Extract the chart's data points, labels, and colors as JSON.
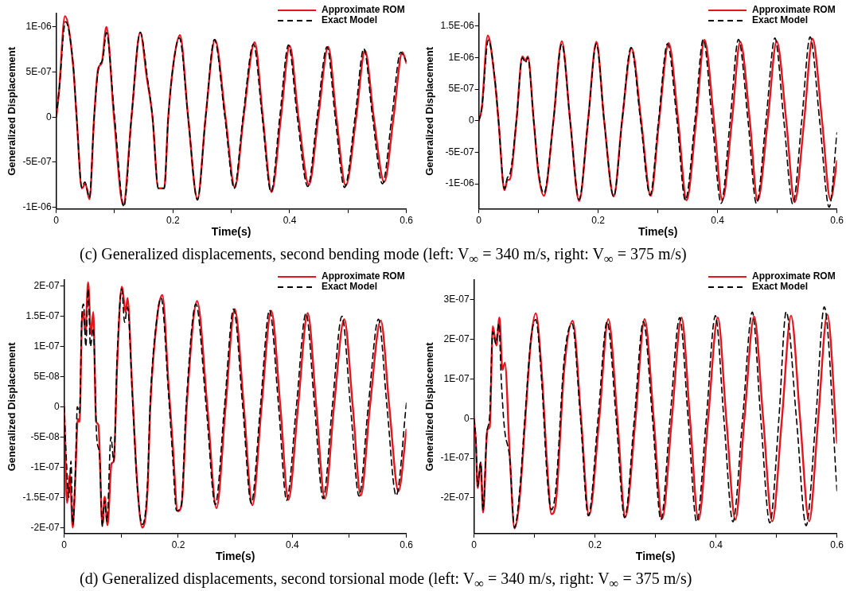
{
  "chart_data": [
    {
      "type": "line",
      "xlabel": "Time(s)",
      "ylabel": "Generalized Displacement",
      "legend": "top right",
      "grid": false,
      "marker": "none",
      "annotations": [
        "(c) Generalized displacements, second bending mode (left:  V$_{∞}$ = 340 m/s, right:  V$_{∞}$ = 375 m/s)"
      ],
      "xlim": [
        0,
        0.6
      ],
      "xticks": [
        0,
        {
          "value": 0.1,
          "label": null
        },
        0.2,
        {
          "value": 0.3,
          "label": null
        },
        0.4,
        {
          "value": 0.5,
          "label": null
        },
        0.6
      ],
      "ylim": [
        -1.02e-06,
        1.15e-06
      ],
      "yticks": [
        {
          "value": -1e-06,
          "label": "-1E-06"
        },
        {
          "value": -5e-07,
          "label": "-5E-07"
        },
        {
          "value": 0,
          "label": "0"
        },
        {
          "value": 5e-07,
          "label": "5E-07"
        },
        {
          "value": 1e-06,
          "label": "1E-06"
        }
      ],
      "series": [
        {
          "name": "Approximate ROM",
          "color": "#e8141c",
          "line_style": "solid",
          "x": [
            0,
            0.005,
            0.015,
            0.029,
            0.035,
            0.044,
            0.05,
            0.057,
            0.065,
            0.072,
            0.078,
            0.086,
            0.099,
            0.115,
            0.129,
            0.144,
            0.155,
            0.165,
            0.175,
            0.185,
            0.192,
            0.201,
            0.212,
            0.226,
            0.242,
            0.256,
            0.272,
            0.29,
            0.306,
            0.321,
            0.34,
            0.354,
            0.369,
            0.385,
            0.4,
            0.415,
            0.433,
            0.449,
            0.466,
            0.48,
            0.496,
            0.514,
            0.529,
            0.544,
            0.562,
            0.578,
            0.593,
            0.6
          ],
          "values": [
            0,
            3e-07,
            1.12e-06,
            5.7e-07,
            0,
            -7.9e-07,
            -7.4e-07,
            -9.1e-07,
            0,
            5.4e-07,
            6e-07,
            1e-06,
            0,
            -9.8e-07,
            0,
            9.4e-07,
            4.5e-07,
            0,
            -7.9e-07,
            -7.9e-07,
            0,
            6e-07,
            9.1e-07,
            0,
            -9.1e-07,
            0,
            8.6e-07,
            0,
            -7.8e-07,
            0,
            8.3e-07,
            0,
            -8.3e-07,
            0,
            7.9e-07,
            0,
            -7.5e-07,
            0,
            7.8e-07,
            0,
            -7.6e-07,
            0,
            7.4e-07,
            0,
            -7.2e-07,
            0,
            7.2e-07,
            6e-07
          ]
        },
        {
          "name": "Exact Model",
          "color": "#000000",
          "line_style": "dashed",
          "x": [
            0,
            0.005,
            0.016,
            0.029,
            0.035,
            0.044,
            0.049,
            0.057,
            0.065,
            0.072,
            0.08,
            0.086,
            0.1,
            0.116,
            0.129,
            0.144,
            0.157,
            0.165,
            0.175,
            0.185,
            0.192,
            0.201,
            0.211,
            0.226,
            0.242,
            0.256,
            0.271,
            0.289,
            0.305,
            0.32,
            0.338,
            0.353,
            0.368,
            0.383,
            0.398,
            0.413,
            0.431,
            0.447,
            0.464,
            0.478,
            0.494,
            0.512,
            0.527,
            0.542,
            0.559,
            0.575,
            0.59,
            0.6
          ],
          "values": [
            0,
            3e-07,
            1.06e-06,
            5.9e-07,
            0,
            -7.8e-07,
            -7.2e-07,
            -8.9e-07,
            0,
            5.2e-07,
            6.5e-07,
            9.4e-07,
            0,
            -9.9e-07,
            0,
            9.4e-07,
            4e-07,
            0,
            -7.9e-07,
            -7.9e-07,
            0,
            6e-07,
            8.8e-07,
            0,
            -9.2e-07,
            0,
            8.6e-07,
            0,
            -7.9e-07,
            0,
            8.1e-07,
            0,
            -8.3e-07,
            0,
            8e-07,
            0,
            -7.7e-07,
            0,
            7.8e-07,
            0,
            -7.8e-07,
            0,
            7.6e-07,
            0,
            -7.4e-07,
            0,
            7.2e-07,
            6.2e-07
          ]
        }
      ]
    },
    {
      "type": "line",
      "xlabel": "Time(s)",
      "ylabel": "Generalized Displacement",
      "legend": "top right",
      "grid": false,
      "marker": "none",
      "xlim": [
        0,
        0.6
      ],
      "xticks": [
        0,
        {
          "value": 0.1,
          "label": null
        },
        0.2,
        {
          "value": 0.3,
          "label": null
        },
        0.4,
        {
          "value": 0.5,
          "label": null
        },
        0.6
      ],
      "ylim": [
        -1.4e-06,
        1.7e-06
      ],
      "yticks": [
        {
          "value": -1e-06,
          "label": "-1E-06"
        },
        {
          "value": -5e-07,
          "label": "-5E-07"
        },
        {
          "value": 0,
          "label": "0"
        },
        {
          "value": 5e-07,
          "label": "5E-07"
        },
        {
          "value": 1e-06,
          "label": "1E-06"
        },
        {
          "value": 1.5e-06,
          "label": "1.5E-06"
        }
      ],
      "series": [
        {
          "name": "Approximate ROM",
          "color": "#e8141c",
          "line_style": "solid",
          "x": [
            0,
            0.005,
            0.015,
            0.027,
            0.033,
            0.043,
            0.048,
            0.052,
            0.063,
            0.073,
            0.078,
            0.082,
            0.092,
            0.1,
            0.109,
            0.125,
            0.139,
            0.153,
            0.168,
            0.183,
            0.197,
            0.21,
            0.226,
            0.24,
            0.256,
            0.272,
            0.288,
            0.302,
            0.318,
            0.334,
            0.348,
            0.364,
            0.378,
            0.394,
            0.408,
            0.424,
            0.438,
            0.454,
            0.467,
            0.484,
            0.499,
            0.515,
            0.529,
            0.545,
            0.559,
            0.575,
            0.589,
            0.6
          ],
          "values": [
            0,
            2e-07,
            1.35e-06,
            6.3e-07,
            0,
            -1.1e-06,
            -9.4e-07,
            -9.3e-07,
            0,
            1.02e-06,
            9.5e-07,
            1.02e-06,
            0,
            -8.4e-07,
            -1.19e-06,
            0,
            1.26e-06,
            0,
            -1.27e-06,
            0,
            1.25e-06,
            0,
            -1.2e-06,
            0,
            1.15e-06,
            0,
            -1.19e-06,
            0,
            1.23e-06,
            0,
            -1.26e-06,
            0,
            1.28e-06,
            0,
            -1.26e-06,
            0,
            1.25e-06,
            0,
            -1.27e-06,
            0,
            1.26e-06,
            0,
            -1.29e-06,
            0,
            1.3e-06,
            0,
            -1.25e-06,
            -6.4e-07
          ]
        },
        {
          "name": "Exact Model",
          "color": "#000000",
          "line_style": "dashed",
          "x": [
            0,
            0.005,
            0.016,
            0.027,
            0.033,
            0.043,
            0.048,
            0.052,
            0.063,
            0.073,
            0.078,
            0.082,
            0.092,
            0.1,
            0.109,
            0.125,
            0.139,
            0.153,
            0.168,
            0.183,
            0.197,
            0.21,
            0.226,
            0.24,
            0.255,
            0.271,
            0.287,
            0.301,
            0.316,
            0.332,
            0.346,
            0.362,
            0.376,
            0.391,
            0.406,
            0.421,
            0.435,
            0.451,
            0.465,
            0.481,
            0.496,
            0.511,
            0.526,
            0.541,
            0.555,
            0.571,
            0.587,
            0.6
          ],
          "values": [
            0,
            2e-07,
            1.28e-06,
            6.5e-07,
            0,
            -1.08e-06,
            -9e-07,
            -8.5e-07,
            0,
            1e-06,
            9.2e-07,
            1e-06,
            0,
            -8e-07,
            -1.15e-06,
            0,
            1.22e-06,
            0,
            -1.25e-06,
            0,
            1.22e-06,
            0,
            -1.2e-06,
            0,
            1.16e-06,
            0,
            -1.18e-06,
            0,
            1.22e-06,
            0,
            -1.26e-06,
            0,
            1.29e-06,
            0,
            -1.31e-06,
            0,
            1.29e-06,
            0,
            -1.31e-06,
            0,
            1.31e-06,
            0,
            -1.32e-06,
            0,
            1.33e-06,
            0,
            -1.37e-06,
            -1.9e-07
          ]
        }
      ]
    },
    {
      "type": "line",
      "xlabel": "Time(s)",
      "ylabel": "Generalized Displacement",
      "legend": "top right",
      "grid": false,
      "marker": "none",
      "annotations": [
        "(d) Generalized displacements, second torsional mode (left:  V$_{∞}$ = 340 m/s, right:  V$_{∞}$ = 375 m/s)"
      ],
      "xlim": [
        0,
        0.6
      ],
      "xticks": [
        0,
        {
          "value": 0.1,
          "label": null
        },
        0.2,
        {
          "value": 0.3,
          "label": null
        },
        0.4,
        {
          "value": 0.5,
          "label": null
        },
        0.6
      ],
      "ylim": [
        -2.1e-07,
        2.1e-07
      ],
      "yticks": [
        {
          "value": -2e-07,
          "label": "-2E-07"
        },
        {
          "value": -1.5e-07,
          "label": "-1.5E-07"
        },
        {
          "value": -1e-07,
          "label": "-1E-07"
        },
        {
          "value": -5e-08,
          "label": "-5E-08"
        },
        {
          "value": 0,
          "label": "0"
        },
        {
          "value": 5e-08,
          "label": "5E-08"
        },
        {
          "value": 1e-07,
          "label": "1E-07"
        },
        {
          "value": 1.5e-07,
          "label": "1.5E-07"
        },
        {
          "value": 2e-07,
          "label": "2E-07"
        }
      ],
      "series": [
        {
          "name": "Approximate ROM",
          "color": "#e8141c",
          "line_style": "solid",
          "x": [
            0,
            0.005,
            0.01,
            0.015,
            0.019,
            0.024,
            0.027,
            0.031,
            0.034,
            0.037,
            0.042,
            0.047,
            0.051,
            0.056,
            0.06,
            0.067,
            0.071,
            0.076,
            0.083,
            0.087,
            0.093,
            0.101,
            0.108,
            0.111,
            0.119,
            0.128,
            0.137,
            0.146,
            0.151,
            0.163,
            0.172,
            0.183,
            0.19,
            0.199,
            0.206,
            0.215,
            0.233,
            0.251,
            0.267,
            0.283,
            0.299,
            0.315,
            0.33,
            0.346,
            0.363,
            0.379,
            0.393,
            0.41,
            0.427,
            0.442,
            0.457,
            0.473,
            0.491,
            0.506,
            0.52,
            0.536,
            0.555,
            0.57,
            0.586,
            0.6
          ],
          "values": [
            0,
            -1.59e-07,
            -1.12e-07,
            -2e-07,
            -1.31e-07,
            -2e-08,
            -2.5e-08,
            1.38e-07,
            1.57e-07,
            1.2e-07,
            2.06e-07,
            1.2e-07,
            1.57e-07,
            -2.4e-08,
            -3e-08,
            -1.96e-07,
            -1.49e-07,
            -1.96e-07,
            -9.4e-08,
            -9e-08,
            7.3e-08,
            1.99e-07,
            1.57e-07,
            1.8e-07,
            3.6e-08,
            -1.26e-07,
            -2e-07,
            -1.4e-07,
            0,
            1.48e-07,
            1.85e-07,
            3.6e-08,
            -5.7e-08,
            -1.73e-07,
            -1.61e-07,
            4e-09,
            1.75e-07,
            0,
            -1.68e-07,
            0,
            1.62e-07,
            0,
            -1.63e-07,
            0,
            1.59e-07,
            0,
            -1.54e-07,
            0,
            1.55e-07,
            0,
            -1.52e-07,
            0,
            1.45e-07,
            0,
            -1.47e-07,
            0,
            1.43e-07,
            0,
            -1.4e-07,
            -3.8e-08
          ]
        },
        {
          "name": "Exact Model",
          "color": "#000000",
          "line_style": "dashed",
          "x": [
            0,
            0.004,
            0.008,
            0.012,
            0.015,
            0.02,
            0.023,
            0.027,
            0.031,
            0.034,
            0.038,
            0.042,
            0.046,
            0.051,
            0.057,
            0.062,
            0.067,
            0.071,
            0.075,
            0.082,
            0.087,
            0.093,
            0.101,
            0.106,
            0.111,
            0.12,
            0.128,
            0.137,
            0.146,
            0.151,
            0.163,
            0.17,
            0.183,
            0.19,
            0.197,
            0.205,
            0.214,
            0.231,
            0.249,
            0.265,
            0.281,
            0.297,
            0.313,
            0.328,
            0.344,
            0.36,
            0.376,
            0.39,
            0.407,
            0.424,
            0.439,
            0.454,
            0.47,
            0.487,
            0.502,
            0.517,
            0.533,
            0.551,
            0.566,
            0.582,
            0.6
          ],
          "values": [
            0,
            -9e-08,
            -1.5e-07,
            -9e-08,
            -1.95e-07,
            -1e-07,
            0,
            -1e-08,
            1.5e-07,
            1.7e-07,
            1e-07,
            1.95e-07,
            1e-07,
            1.3e-07,
            -5e-08,
            -8e-08,
            -1.98e-07,
            -1.55e-07,
            -1.9e-07,
            -5e-08,
            -9e-08,
            8.5e-08,
            1.95e-07,
            1.4e-07,
            1.65e-07,
            1e-08,
            -1.3e-07,
            -1.95e-07,
            -1.3e-07,
            1e-08,
            1.5e-07,
            1.8e-07,
            2e-08,
            -8e-08,
            -1.72e-07,
            -1.65e-07,
            5e-09,
            1.7e-07,
            0,
            -1.62e-07,
            0,
            1.62e-07,
            0,
            -1.6e-07,
            0,
            1.6e-07,
            0,
            -1.55e-07,
            0,
            1.55e-07,
            0,
            -1.52e-07,
            0,
            1.5e-07,
            0,
            -1.48e-07,
            0,
            1.45e-07,
            0,
            -1.47e-07,
            6e-09
          ]
        }
      ]
    },
    {
      "type": "line",
      "xlabel": "Time(s)",
      "ylabel": "Generalized Displacement",
      "legend": "top right",
      "grid": false,
      "marker": "none",
      "xlim": [
        0,
        0.6
      ],
      "xticks": [
        0,
        {
          "value": 0.1,
          "label": null
        },
        0.2,
        {
          "value": 0.3,
          "label": null
        },
        0.4,
        {
          "value": 0.5,
          "label": null
        },
        0.6
      ],
      "ylim": [
        -2.9e-07,
        3.5e-07
      ],
      "yticks": [
        {
          "value": -2e-07,
          "label": "-2E-07"
        },
        {
          "value": -1e-07,
          "label": "-1E-07"
        },
        {
          "value": 0,
          "label": "0"
        },
        {
          "value": 1e-07,
          "label": "1E-07"
        },
        {
          "value": 2e-07,
          "label": "2E-07"
        },
        {
          "value": 3e-07,
          "label": "3E-07"
        }
      ],
      "series": [
        {
          "name": "Approximate ROM",
          "color": "#e8141c",
          "line_style": "solid",
          "x": [
            0,
            0.003,
            0.006,
            0.011,
            0.015,
            0.022,
            0.026,
            0.031,
            0.037,
            0.042,
            0.047,
            0.051,
            0.059,
            0.067,
            0.075,
            0.084,
            0.094,
            0.102,
            0.112,
            0.121,
            0.128,
            0.135,
            0.149,
            0.163,
            0.177,
            0.19,
            0.207,
            0.222,
            0.237,
            0.25,
            0.267,
            0.282,
            0.297,
            0.311,
            0.327,
            0.343,
            0.357,
            0.371,
            0.387,
            0.403,
            0.417,
            0.432,
            0.447,
            0.463,
            0.478,
            0.493,
            0.509,
            0.524,
            0.539,
            0.554,
            0.569,
            0.584,
            0.6
          ],
          "values": [
            0,
            -6.1e-08,
            -1.75e-07,
            -1.12e-07,
            -2.37e-07,
            -2.8e-08,
            -2e-08,
            2.33e-07,
            1.85e-07,
            2.55e-07,
            1.23e-07,
            1.41e-07,
            -9e-08,
            -2.77e-07,
            -2.08e-07,
            -1.7e-08,
            1.96e-07,
            2.66e-07,
            1.15e-07,
            -1.2e-07,
            -2.41e-07,
            -2.15e-07,
            1.23e-07,
            2.47e-07,
            0,
            -2.44e-07,
            0,
            2.51e-07,
            0,
            -2.48e-07,
            0,
            2.51e-07,
            0,
            -2.52e-07,
            0,
            2.55e-07,
            0,
            -2.55e-07,
            0,
            2.55e-07,
            0,
            -2.55e-07,
            0,
            2.58e-07,
            0,
            -2.59e-07,
            0,
            2.6e-07,
            0,
            -2.59e-07,
            0,
            2.63e-07,
            -6.1e-08
          ]
        },
        {
          "name": "Exact Model",
          "color": "#000000",
          "line_style": "dashed",
          "x": [
            0,
            0.003,
            0.006,
            0.011,
            0.015,
            0.021,
            0.026,
            0.031,
            0.036,
            0.041,
            0.045,
            0.05,
            0.059,
            0.067,
            0.075,
            0.084,
            0.094,
            0.102,
            0.112,
            0.121,
            0.128,
            0.135,
            0.149,
            0.162,
            0.176,
            0.189,
            0.205,
            0.22,
            0.235,
            0.249,
            0.265,
            0.28,
            0.295,
            0.309,
            0.324,
            0.34,
            0.354,
            0.368,
            0.384,
            0.399,
            0.413,
            0.428,
            0.444,
            0.46,
            0.474,
            0.489,
            0.504,
            0.516,
            0.533,
            0.549,
            0.565,
            0.579,
            0.6
          ],
          "values": [
            0,
            -5e-08,
            -1.7e-07,
            -1.1e-07,
            -2.3e-07,
            -4e-08,
            1e-08,
            2.2e-07,
            1.9e-07,
            2.4e-07,
            1e-07,
            -2e-08,
            -1e-07,
            -2.75e-07,
            -1.9e-07,
            0,
            2e-07,
            2.5e-07,
            9e-08,
            -1.5e-07,
            -2.3e-07,
            -1.8e-07,
            1.5e-07,
            2.4e-07,
            0,
            -2.45e-07,
            0,
            2.45e-07,
            0,
            -2.5e-07,
            0,
            2.45e-07,
            0,
            -2.55e-07,
            0,
            2.55e-07,
            0,
            -2.6e-07,
            0,
            2.6e-07,
            0,
            -2.6e-07,
            0,
            2.69e-07,
            0,
            -2.63e-07,
            0,
            2.7e-07,
            0,
            -2.7e-07,
            0,
            2.82e-07,
            -1.82e-07
          ]
        }
      ]
    }
  ]
}
